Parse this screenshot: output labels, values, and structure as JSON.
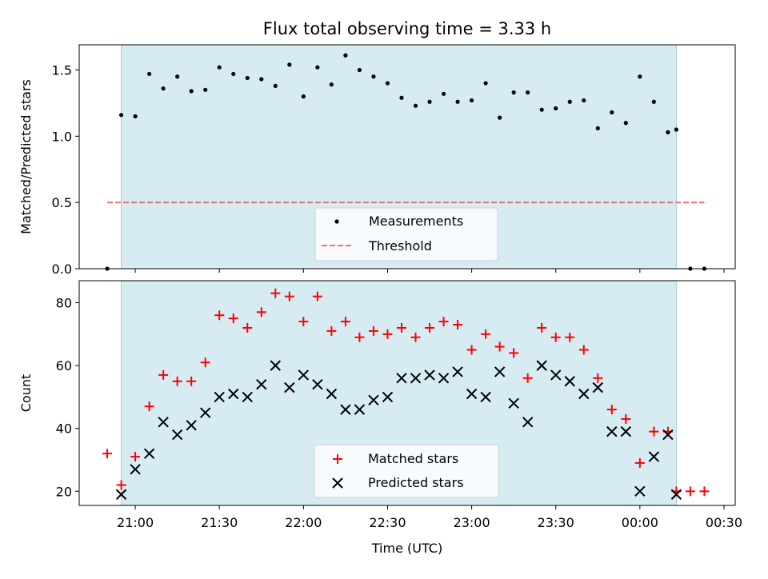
{
  "chart_data": [
    {
      "type": "scatter",
      "title": "Flux total observing time = 3.33 h",
      "xlabel": "",
      "ylabel": "Matched/Predicted stars",
      "xlim": [
        "20:40",
        "24:34"
      ],
      "ylim": [
        0,
        1.69
      ],
      "yticks": [
        0.0,
        0.5,
        1.0,
        1.5
      ],
      "ytick_labels": [
        "0.0",
        "0.5",
        "1.0",
        "1.5"
      ],
      "xticks": [
        "21:00",
        "21:30",
        "22:00",
        "22:30",
        "23:00",
        "23:30",
        "24:00",
        "24:30"
      ],
      "observing_window": [
        "20:55",
        "24:13"
      ],
      "legend": {
        "position": "lower-center"
      },
      "series": [
        {
          "name": "Measurements",
          "marker": "dot",
          "color": "#000000",
          "x": [
            "20:50",
            "20:55",
            "21:00",
            "21:05",
            "21:10",
            "21:15",
            "21:20",
            "21:25",
            "21:30",
            "21:35",
            "21:40",
            "21:45",
            "21:50",
            "21:55",
            "22:00",
            "22:05",
            "22:10",
            "22:15",
            "22:20",
            "22:25",
            "22:30",
            "22:35",
            "22:40",
            "22:45",
            "22:50",
            "22:55",
            "23:00",
            "23:05",
            "23:10",
            "23:15",
            "23:20",
            "23:25",
            "23:30",
            "23:35",
            "23:40",
            "23:45",
            "23:50",
            "23:55",
            "24:00",
            "24:05",
            "24:10",
            "24:13",
            "24:18",
            "24:23"
          ],
          "y": [
            0.0,
            1.16,
            1.15,
            1.47,
            1.36,
            1.45,
            1.34,
            1.35,
            1.52,
            1.47,
            1.44,
            1.43,
            1.38,
            1.54,
            1.3,
            1.52,
            1.39,
            1.61,
            1.5,
            1.45,
            1.4,
            1.29,
            1.23,
            1.26,
            1.32,
            1.26,
            1.27,
            1.4,
            1.14,
            1.33,
            1.33,
            1.2,
            1.21,
            1.26,
            1.27,
            1.06,
            1.18,
            1.1,
            1.45,
            1.26,
            1.03,
            1.05,
            0.0,
            0.0
          ]
        },
        {
          "name": "Threshold",
          "style": "dashed",
          "color": "#f07070",
          "x": [
            "20:50",
            "24:23"
          ],
          "y": [
            0.5,
            0.5
          ]
        }
      ]
    },
    {
      "type": "scatter",
      "title": "",
      "xlabel": "Time (UTC)",
      "ylabel": "Count",
      "xlim": [
        "20:40",
        "24:34"
      ],
      "ylim": [
        15.5,
        87
      ],
      "yticks": [
        20,
        40,
        60,
        80
      ],
      "ytick_labels": [
        "20",
        "40",
        "60",
        "80"
      ],
      "xticks": [
        "21:00",
        "21:30",
        "22:00",
        "22:30",
        "23:00",
        "23:30",
        "24:00",
        "24:30"
      ],
      "xtick_labels": [
        "21:00",
        "21:30",
        "22:00",
        "22:30",
        "23:00",
        "23:30",
        "00:00",
        "00:30"
      ],
      "observing_window": [
        "20:55",
        "24:13"
      ],
      "legend": {
        "position": "lower-center"
      },
      "series": [
        {
          "name": "Matched stars",
          "marker": "plus",
          "color": "#ff0000",
          "x": [
            "20:50",
            "20:55",
            "21:00",
            "21:05",
            "21:10",
            "21:15",
            "21:20",
            "21:25",
            "21:30",
            "21:35",
            "21:40",
            "21:45",
            "21:50",
            "21:55",
            "22:00",
            "22:05",
            "22:10",
            "22:15",
            "22:20",
            "22:25",
            "22:30",
            "22:35",
            "22:40",
            "22:45",
            "22:50",
            "22:55",
            "23:00",
            "23:05",
            "23:10",
            "23:15",
            "23:20",
            "23:25",
            "23:30",
            "23:35",
            "23:40",
            "23:45",
            "23:50",
            "23:55",
            "24:00",
            "24:05",
            "24:10",
            "24:13",
            "24:18",
            "24:23"
          ],
          "y": [
            32,
            22,
            31,
            47,
            57,
            55,
            55,
            61,
            76,
            75,
            72,
            77,
            83,
            82,
            74,
            82,
            71,
            74,
            69,
            71,
            70,
            72,
            69,
            72,
            74,
            73,
            65,
            70,
            66,
            64,
            56,
            72,
            69,
            69,
            65,
            56,
            46,
            43,
            29,
            39,
            39,
            20,
            20,
            20
          ]
        },
        {
          "name": "Predicted stars",
          "marker": "x",
          "color": "#000000",
          "x": [
            "20:55",
            "21:00",
            "21:05",
            "21:10",
            "21:15",
            "21:20",
            "21:25",
            "21:30",
            "21:35",
            "21:40",
            "21:45",
            "21:50",
            "21:55",
            "22:00",
            "22:05",
            "22:10",
            "22:15",
            "22:20",
            "22:25",
            "22:30",
            "22:35",
            "22:40",
            "22:45",
            "22:50",
            "22:55",
            "23:00",
            "23:05",
            "23:10",
            "23:15",
            "23:20",
            "23:25",
            "23:30",
            "23:35",
            "23:40",
            "23:45",
            "23:50",
            "23:55",
            "24:00",
            "24:05",
            "24:10",
            "24:13"
          ],
          "y": [
            19,
            27,
            32,
            42,
            38,
            41,
            45,
            50,
            51,
            50,
            54,
            60,
            53,
            57,
            54,
            51,
            46,
            46,
            49,
            50,
            56,
            56,
            57,
            56,
            58,
            51,
            50,
            58,
            48,
            42,
            60,
            57,
            55,
            51,
            53,
            39,
            39,
            20,
            31,
            38,
            19
          ]
        }
      ]
    }
  ]
}
